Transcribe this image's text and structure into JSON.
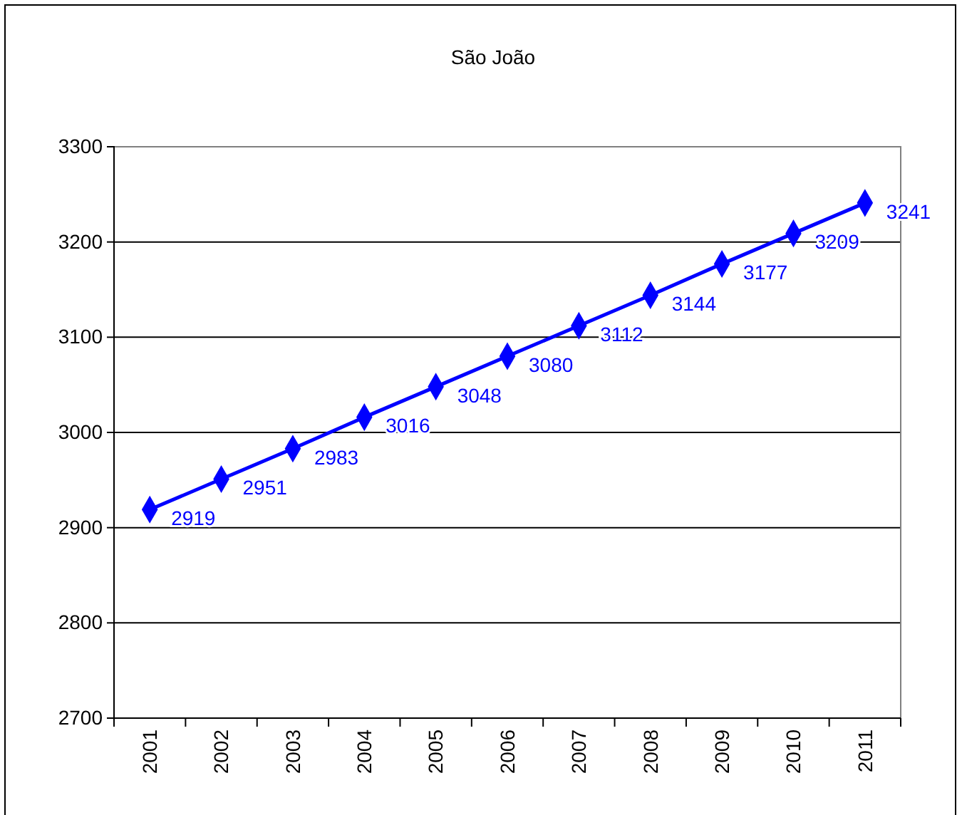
{
  "chart_data": {
    "type": "line",
    "title": "São João",
    "categories": [
      "2001",
      "2002",
      "2003",
      "2004",
      "2005",
      "2006",
      "2007",
      "2008",
      "2009",
      "2010",
      "2011"
    ],
    "series": [
      {
        "color": "#0000ff",
        "values": [
          2919,
          2951,
          2983,
          3016,
          3048,
          3080,
          3112,
          3144,
          3177,
          3209,
          3241
        ]
      }
    ],
    "ylim": [
      2700,
      3300
    ],
    "yticks": [
      2700,
      2800,
      2900,
      3000,
      3100,
      3200,
      3300
    ],
    "grid": "y",
    "marker": "diamond",
    "line_style": "solid",
    "data_labels": true
  }
}
